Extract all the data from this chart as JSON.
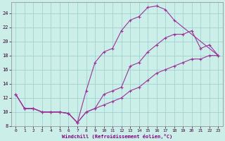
{
  "xlabel": "Windchill (Refroidissement éolien,°C)",
  "bg_color": "#cceee8",
  "line_color": "#993399",
  "grid_color": "#99cccc",
  "xlim": [
    -0.5,
    23.5
  ],
  "ylim": [
    8,
    25.5
  ],
  "xticks": [
    0,
    1,
    2,
    3,
    4,
    5,
    6,
    7,
    8,
    9,
    10,
    11,
    12,
    13,
    14,
    15,
    16,
    17,
    18,
    19,
    20,
    21,
    22,
    23
  ],
  "yticks": [
    8,
    10,
    12,
    14,
    16,
    18,
    20,
    22,
    24
  ],
  "line1_x": [
    0,
    1,
    2,
    3,
    4,
    5,
    6,
    7,
    8,
    9,
    10,
    11,
    12,
    13,
    14,
    15,
    16,
    17,
    18,
    23
  ],
  "line1_y": [
    12.5,
    10.5,
    10.5,
    10.0,
    10.0,
    10.0,
    9.8,
    8.5,
    13.0,
    17.0,
    18.5,
    19.0,
    21.5,
    23.0,
    23.5,
    24.8,
    25.0,
    24.5,
    23.0,
    18.0
  ],
  "line2_x": [
    0,
    1,
    2,
    3,
    4,
    5,
    6,
    7,
    8,
    9,
    10,
    11,
    12,
    13,
    14,
    15,
    16,
    17,
    18,
    19,
    20,
    21,
    22,
    23
  ],
  "line2_y": [
    12.5,
    10.5,
    10.5,
    10.0,
    10.0,
    10.0,
    9.8,
    8.5,
    10.0,
    10.5,
    12.5,
    13.0,
    13.5,
    16.5,
    17.0,
    18.5,
    19.5,
    20.5,
    21.0,
    21.0,
    21.5,
    19.0,
    19.5,
    18.0
  ],
  "line3_x": [
    0,
    1,
    2,
    3,
    4,
    5,
    6,
    7,
    8,
    9,
    10,
    11,
    12,
    13,
    14,
    15,
    16,
    17,
    18,
    19,
    20,
    21,
    22,
    23
  ],
  "line3_y": [
    12.5,
    10.5,
    10.5,
    10.0,
    10.0,
    10.0,
    9.8,
    8.5,
    10.0,
    10.5,
    11.0,
    11.5,
    12.0,
    13.0,
    13.5,
    14.5,
    15.5,
    16.0,
    16.5,
    17.0,
    17.5,
    17.5,
    18.0,
    18.0
  ]
}
